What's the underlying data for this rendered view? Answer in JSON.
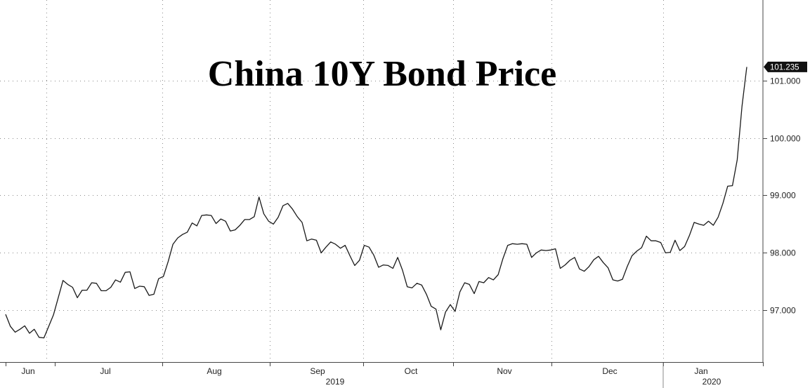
{
  "chart_data": {
    "type": "line",
    "title": "China 10Y Bond Price",
    "xlabel": "",
    "ylabel": "",
    "x_month_labels": [
      "Jun",
      "Jul",
      "Aug",
      "Sep",
      "Oct",
      "Nov",
      "Dec",
      "Jan"
    ],
    "x_year_labels": [
      "2019",
      "2020"
    ],
    "y_ticks": [
      "97.000",
      "98.000",
      "99.000",
      "100.000",
      "101.000"
    ],
    "ylim": [
      96.1,
      102.4
    ],
    "last_value_label": "101.235",
    "grid": true,
    "series": [
      {
        "values": [
          96.93,
          96.72,
          96.62,
          96.67,
          96.73,
          96.6,
          96.67,
          96.53,
          96.52,
          96.72,
          96.92,
          97.22,
          97.52,
          97.45,
          97.4,
          97.22,
          97.35,
          97.35,
          97.48,
          97.47,
          97.34,
          97.34,
          97.4,
          97.53,
          97.49,
          97.66,
          97.67,
          97.38,
          97.42,
          97.41,
          97.26,
          97.28,
          97.55,
          97.59,
          97.85,
          98.15,
          98.26,
          98.32,
          98.36,
          98.52,
          98.47,
          98.65,
          98.66,
          98.65,
          98.51,
          98.59,
          98.55,
          98.38,
          98.4,
          98.48,
          98.58,
          98.58,
          98.63,
          98.97,
          98.68,
          98.55,
          98.5,
          98.62,
          98.82,
          98.86,
          98.76,
          98.63,
          98.53,
          98.21,
          98.24,
          98.22,
          98.0,
          98.1,
          98.19,
          98.15,
          98.08,
          98.13,
          97.95,
          97.78,
          97.87,
          98.13,
          98.1,
          97.96,
          97.75,
          97.79,
          97.78,
          97.73,
          97.92,
          97.7,
          97.41,
          97.39,
          97.47,
          97.44,
          97.28,
          97.07,
          97.02,
          96.66,
          96.97,
          97.1,
          96.98,
          97.32,
          97.48,
          97.45,
          97.29,
          97.5,
          97.48,
          97.57,
          97.53,
          97.62,
          97.9,
          98.13,
          98.16,
          98.15,
          98.16,
          98.15,
          97.92,
          98.0,
          98.05,
          98.04,
          98.05,
          98.07,
          97.73,
          97.79,
          97.87,
          97.92,
          97.72,
          97.68,
          97.76,
          97.88,
          97.94,
          97.83,
          97.74,
          97.53,
          97.51,
          97.54,
          97.76,
          97.95,
          98.03,
          98.09,
          98.29,
          98.21,
          98.21,
          98.18,
          98.0,
          98.01,
          98.22,
          98.04,
          98.11,
          98.3,
          98.53,
          98.5,
          98.48,
          98.55,
          98.48,
          98.62,
          98.86,
          99.16,
          99.17,
          99.62,
          100.55,
          101.235
        ]
      }
    ]
  },
  "colors": {
    "line": "#1a1a1a",
    "grid": "#8a8a8a",
    "badge_bg": "#111111",
    "badge_text": "#ffffff",
    "background": "#ffffff"
  }
}
